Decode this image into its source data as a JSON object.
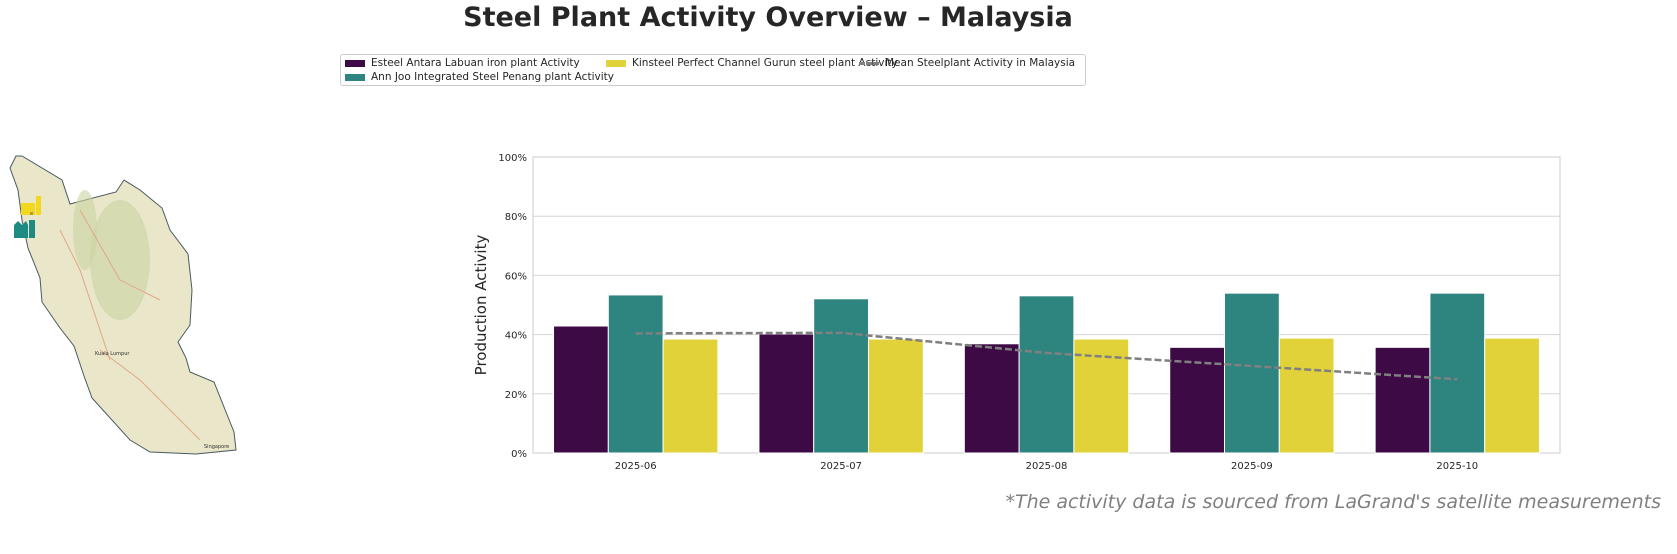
{
  "title": "Steel Plant Activity Overview – Malaysia",
  "footnote": "*The activity data is sourced from LaGrand's satellite measurements",
  "map": {
    "labels": [
      "Kuala Lumpur",
      "Singapore"
    ]
  },
  "colors": {
    "esteel": "#3e0a46",
    "annjoo": "#2e8580",
    "kinsteel": "#e1d23a",
    "mean": "#808080"
  },
  "chart_data": {
    "type": "bar",
    "title": "Steel Plant Activity Overview – Malaysia",
    "xlabel": "",
    "ylabel": "Production Activity",
    "ylim": [
      0,
      100
    ],
    "yticks": [
      "0%",
      "20%",
      "40%",
      "60%",
      "80%",
      "100%"
    ],
    "grid": true,
    "legend_position": "top-center",
    "categories": [
      "2025-06",
      "2025-07",
      "2025-08",
      "2025-09",
      "2025-10"
    ],
    "series": [
      {
        "name": "Esteel Antara Labuan iron plant Activity",
        "type": "bar",
        "values": [
          42.9,
          40.2,
          36.9,
          35.7,
          35.7
        ]
      },
      {
        "name": "Ann Joo Integrated Steel Penang plant Activity",
        "type": "bar",
        "values": [
          53.4,
          52.1,
          53.1,
          54.0,
          54.0
        ]
      },
      {
        "name": "Kinsteel Perfect Channel Gurun steel plant Activity",
        "type": "bar",
        "values": [
          38.5,
          38.5,
          38.5,
          38.8,
          38.8
        ]
      },
      {
        "name": "Mean Steelplant Activity in Malaysia",
        "type": "line",
        "values": [
          40.4,
          40.6,
          33.8,
          29.4,
          24.9
        ]
      }
    ]
  }
}
